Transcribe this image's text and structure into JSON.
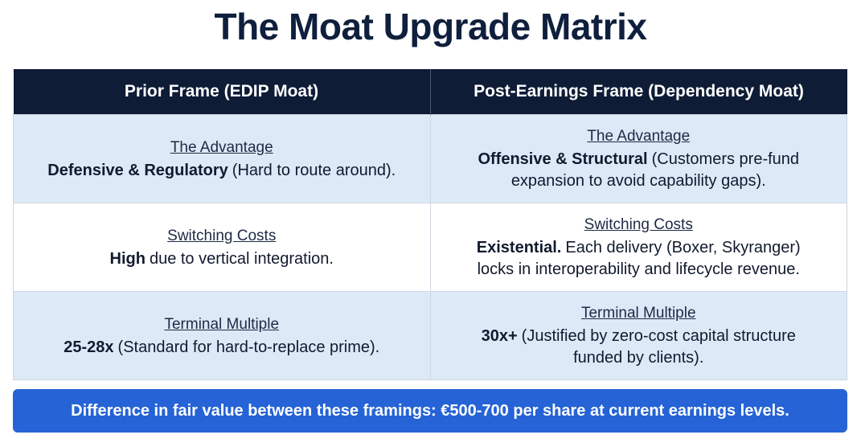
{
  "header": {
    "title": "The Moat Upgrade Matrix"
  },
  "table": {
    "columns": [
      "Prior Frame (EDIP Moat)",
      "Post-Earnings Frame (Dependency Moat)"
    ],
    "rows": [
      [
        {
          "label": "The Advantage",
          "bold": "Defensive & Regulatory",
          "text": "(Hard to route around)."
        },
        {
          "label": "The Advantage",
          "bold": "Offensive & Structural",
          "text": "(Customers pre-fund expansion to avoid capability gaps)."
        }
      ],
      [
        {
          "label": "Switching Costs",
          "bold": "High",
          "text": "due to vertical integration."
        },
        {
          "label": "Switching Costs",
          "bold": "Existential.",
          "text": "Each delivery (Boxer, Skyranger) locks in interoperability and lifecycle revenue."
        }
      ],
      [
        {
          "label": "Terminal Multiple",
          "bold": "25-28x",
          "text": "(Standard for hard-to-replace prime)."
        },
        {
          "label": "Terminal Multiple",
          "bold": "30x+",
          "text": "(Justified by zero-cost capital structure funded by clients)."
        }
      ]
    ]
  },
  "footer": {
    "text": "Difference in fair value between these framings: €500-700 per share at current earnings levels."
  }
}
